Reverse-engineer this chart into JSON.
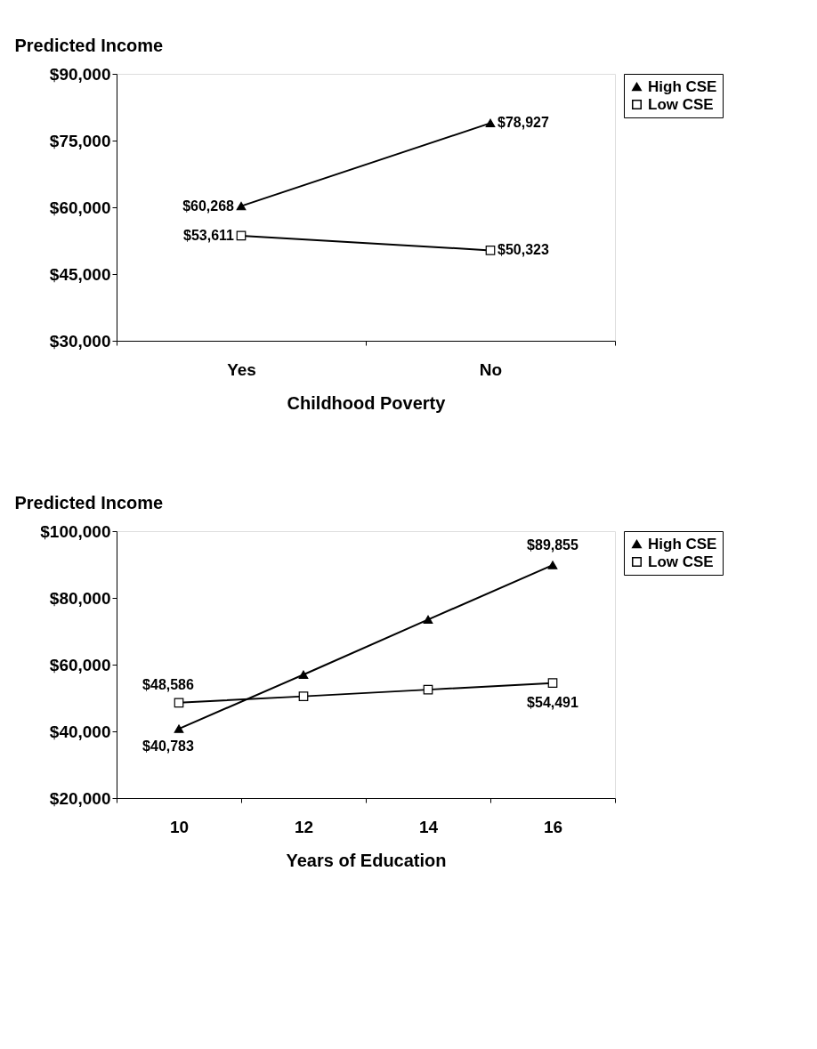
{
  "chart_data": [
    {
      "type": "line",
      "ylabel": "Predicted Income",
      "xlabel": "Childhood Poverty",
      "categories": [
        "Yes",
        "No"
      ],
      "series": [
        {
          "name": "High CSE",
          "color": "#000000",
          "marker": "triangle",
          "values": [
            60268,
            78927
          ],
          "value_labels": [
            "$60,268",
            "$78,927"
          ]
        },
        {
          "name": "Low CSE",
          "color": "#000000",
          "marker": "square",
          "values": [
            53611,
            50323
          ],
          "value_labels": [
            "$53,611",
            "$50,323"
          ]
        }
      ],
      "ylim": [
        30000,
        90000
      ],
      "yticks": [
        {
          "value": 30000,
          "label": "$30,000"
        },
        {
          "value": 45000,
          "label": "$45,000"
        },
        {
          "value": 60000,
          "label": "$60,000"
        },
        {
          "value": 75000,
          "label": "$75,000"
        },
        {
          "value": 90000,
          "label": "$90,000"
        }
      ],
      "grid": false,
      "legend": "right"
    },
    {
      "type": "line",
      "ylabel": "Predicted Income",
      "xlabel": "Years of Education",
      "categories": [
        "10",
        "12",
        "14",
        "16"
      ],
      "series": [
        {
          "name": "High CSE",
          "color": "#000000",
          "marker": "triangle",
          "values": [
            40783,
            57000,
            73500,
            89855
          ],
          "value_labels": [
            "$40,783",
            null,
            null,
            "$89,855"
          ]
        },
        {
          "name": "Low CSE",
          "color": "#000000",
          "marker": "square",
          "values": [
            48586,
            50500,
            52500,
            54491
          ],
          "value_labels": [
            "$48,586",
            null,
            null,
            "$54,491"
          ]
        }
      ],
      "ylim": [
        20000,
        100000
      ],
      "yticks": [
        {
          "value": 20000,
          "label": "$20,000"
        },
        {
          "value": 40000,
          "label": "$40,000"
        },
        {
          "value": 60000,
          "label": "$60,000"
        },
        {
          "value": 80000,
          "label": "$80,000"
        },
        {
          "value": 100000,
          "label": "$100,000"
        }
      ],
      "grid": false,
      "legend": "right"
    }
  ]
}
